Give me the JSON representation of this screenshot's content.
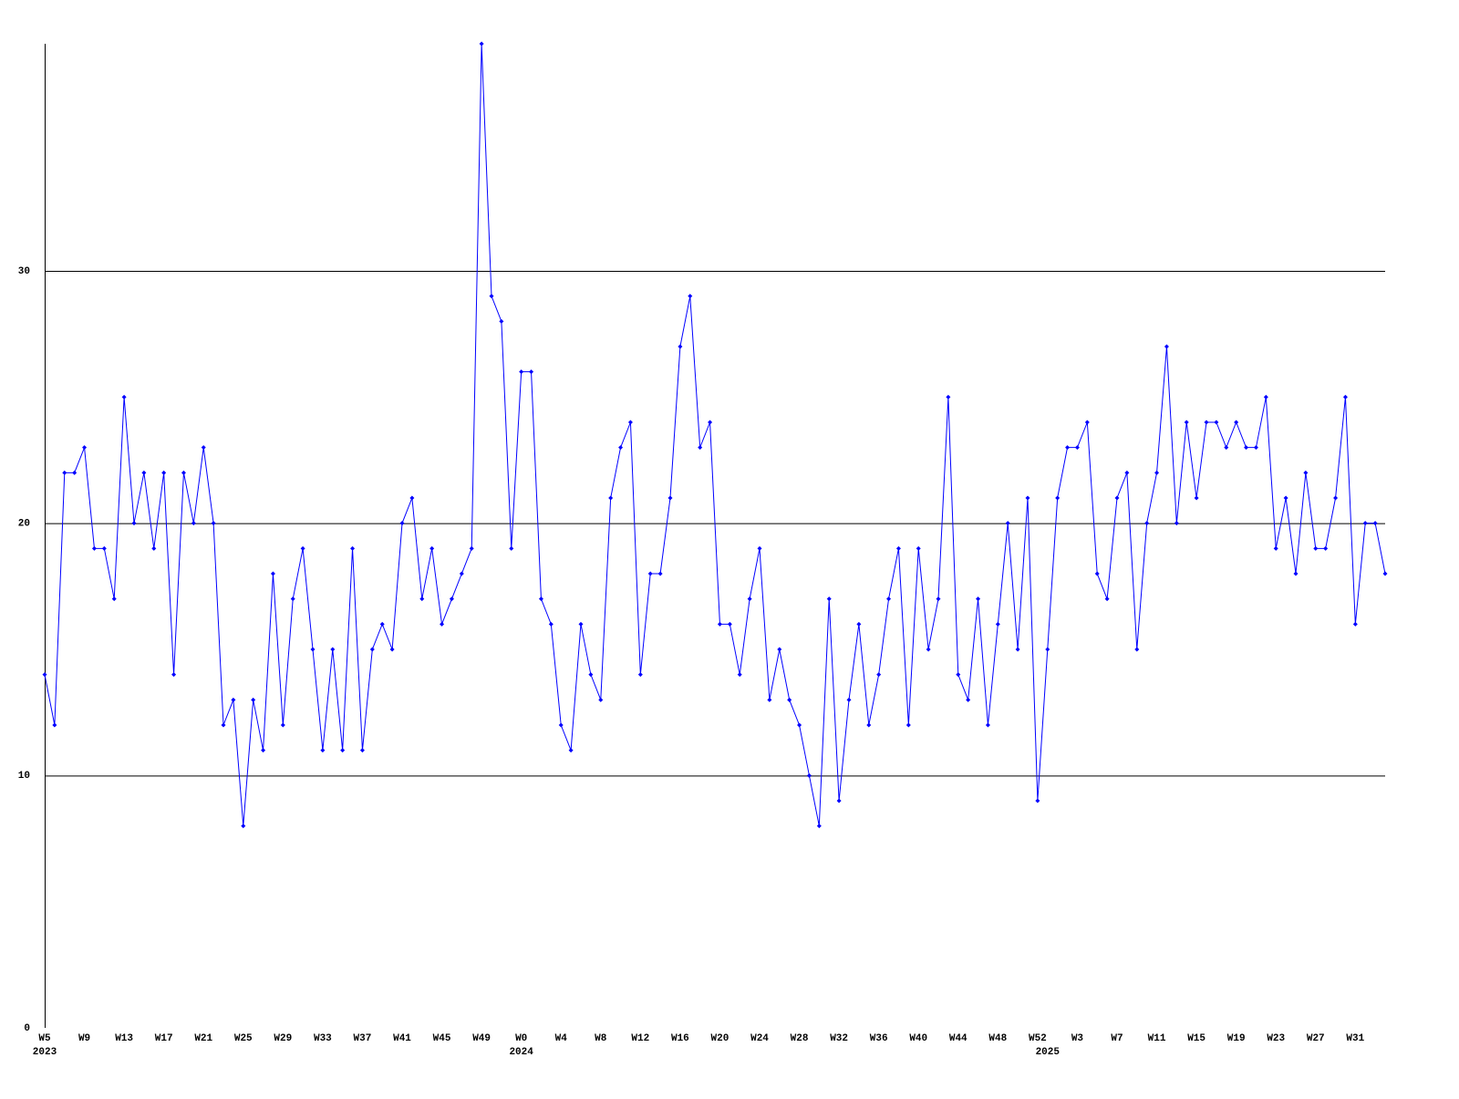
{
  "chart_data": {
    "type": "line",
    "categories": [
      "W5",
      null,
      null,
      null,
      "W9",
      null,
      null,
      null,
      "W13",
      null,
      null,
      null,
      "W17",
      null,
      null,
      null,
      "W21",
      null,
      null,
      null,
      "W25",
      null,
      null,
      null,
      "W29",
      null,
      null,
      null,
      "W33",
      null,
      null,
      null,
      "W37",
      null,
      null,
      null,
      "W41",
      null,
      null,
      null,
      "W45",
      null,
      null,
      null,
      "W49",
      null,
      null,
      null,
      "W0",
      null,
      null,
      null,
      "W4",
      null,
      null,
      null,
      "W8",
      null,
      null,
      null,
      "W12",
      null,
      null,
      null,
      "W16",
      null,
      null,
      null,
      "W20",
      null,
      null,
      null,
      "W24",
      null,
      null,
      null,
      "W28",
      null,
      null,
      null,
      "W32",
      null,
      null,
      null,
      "W36",
      null,
      null,
      null,
      "W40",
      null,
      null,
      null,
      "W44",
      null,
      null,
      null,
      "W48",
      null,
      null,
      null,
      "W52",
      null,
      null,
      null,
      "W3",
      null,
      null,
      null,
      "W7",
      null,
      null,
      null,
      "W11",
      null,
      null,
      null,
      "W15",
      null,
      null,
      null,
      "W19",
      null,
      null,
      null,
      "W23",
      null,
      null,
      null,
      "W27",
      null,
      null,
      null,
      "W31",
      null,
      null,
      null
    ],
    "year_categories": [
      "2023",
      null,
      null,
      null,
      null,
      null,
      null,
      null,
      null,
      null,
      null,
      null,
      null,
      null,
      null,
      null,
      null,
      null,
      null,
      null,
      null,
      null,
      null,
      null,
      null,
      null,
      null,
      null,
      null,
      null,
      null,
      null,
      null,
      null,
      null,
      null,
      null,
      null,
      null,
      null,
      null,
      null,
      null,
      null,
      null,
      null,
      null,
      null,
      "2024",
      null,
      null,
      null,
      null,
      null,
      null,
      null,
      null,
      null,
      null,
      null,
      null,
      null,
      null,
      null,
      null,
      null,
      null,
      null,
      null,
      null,
      null,
      null,
      null,
      null,
      null,
      null,
      null,
      null,
      null,
      null,
      null,
      null,
      null,
      null,
      null,
      null,
      null,
      null,
      null,
      null,
      null,
      null,
      null,
      null,
      null,
      null,
      null,
      null,
      null,
      null,
      null,
      "2025",
      null,
      null,
      null,
      null,
      null,
      null,
      null,
      null,
      null,
      null,
      null,
      null,
      null,
      null,
      null,
      null,
      null,
      null,
      null,
      null,
      null,
      null,
      null,
      null,
      null,
      null,
      null,
      null,
      null,
      null,
      null,
      null,
      null,
      null
    ],
    "values": [
      14,
      12,
      22,
      22,
      23,
      19,
      19,
      17,
      25,
      20,
      22,
      19,
      22,
      14,
      22,
      20,
      23,
      20,
      12,
      13,
      8,
      13,
      11,
      18,
      12,
      17,
      19,
      15,
      11,
      15,
      11,
      19,
      11,
      15,
      16,
      15,
      20,
      21,
      17,
      19,
      16,
      17,
      18,
      19,
      39,
      29,
      28,
      19,
      26,
      26,
      17,
      16,
      12,
      11,
      16,
      14,
      13,
      21,
      23,
      24,
      14,
      18,
      18,
      21,
      27,
      29,
      23,
      24,
      16,
      16,
      14,
      17,
      19,
      13,
      15,
      13,
      12,
      10,
      8,
      17,
      9,
      13,
      16,
      12,
      14,
      17,
      19,
      12,
      19,
      15,
      17,
      25,
      14,
      13,
      17,
      12,
      16,
      20,
      15,
      21,
      9,
      15,
      21,
      23,
      23,
      24,
      18,
      17,
      21,
      22,
      15,
      20,
      22,
      27,
      20,
      24,
      21,
      24,
      24,
      23,
      24,
      23,
      23,
      25,
      19,
      21,
      18,
      22,
      19,
      19,
      21,
      25,
      16,
      20,
      20,
      18
    ],
    "color": "#0000ff",
    "ylim": [
      0,
      39
    ],
    "yticks": [
      0,
      10,
      20,
      30
    ],
    "grid": true
  }
}
